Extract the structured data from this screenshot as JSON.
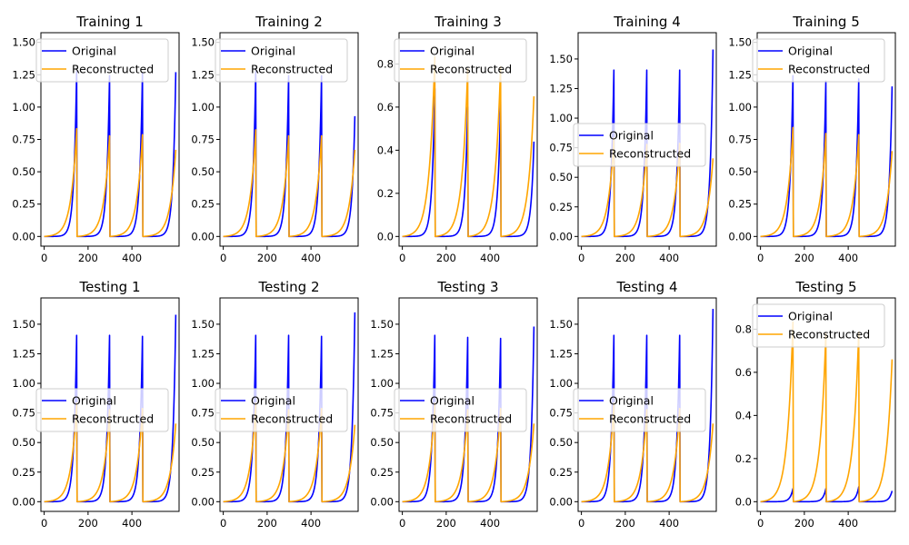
{
  "colors": {
    "original": "#0000ff",
    "reconstructed": "#ffa500"
  },
  "chart_data": [
    {
      "type": "line",
      "title": "Training 1",
      "xlim": [
        -15,
        615
      ],
      "ylim": [
        -0.075,
        1.575
      ],
      "xticks": [
        0,
        200,
        400
      ],
      "xtick_labels": [
        "0",
        "200",
        "400"
      ],
      "yticks": [
        0,
        0.25,
        0.5,
        0.75,
        1.0,
        1.25,
        1.5
      ],
      "ytick_labels": [
        "0.00",
        "0.25",
        "0.50",
        "0.75",
        "1.00",
        "1.25",
        "1.50"
      ],
      "legend": "upper-left",
      "series": [
        {
          "name": "Original",
          "color": "#0000ff",
          "peaks": [
            1.49,
            1.45,
            1.47
          ],
          "end": 1.27
        },
        {
          "name": "Reconstructed",
          "color": "#ffa500",
          "peaks": [
            0.9,
            0.84,
            0.85
          ],
          "end": 0.67
        }
      ]
    },
    {
      "type": "line",
      "title": "Training 2",
      "xlim": [
        -15,
        615
      ],
      "ylim": [
        -0.075,
        1.575
      ],
      "xticks": [
        0,
        200,
        400
      ],
      "xtick_labels": [
        "0",
        "200",
        "400"
      ],
      "yticks": [
        0,
        0.25,
        0.5,
        0.75,
        1.0,
        1.25,
        1.5
      ],
      "ytick_labels": [
        "0.00",
        "0.25",
        "0.50",
        "0.75",
        "1.00",
        "1.25",
        "1.50"
      ],
      "legend": "upper-left",
      "series": [
        {
          "name": "Original",
          "color": "#0000ff",
          "peaks": [
            1.49,
            1.45,
            1.45
          ],
          "end": 0.93
        },
        {
          "name": "Reconstructed",
          "color": "#ffa500",
          "peaks": [
            0.89,
            0.84,
            0.84
          ],
          "end": 0.67
        }
      ]
    },
    {
      "type": "line",
      "title": "Training 3",
      "xlim": [
        -15,
        615
      ],
      "ylim": [
        -0.045,
        0.945
      ],
      "xticks": [
        0,
        200,
        400
      ],
      "xtick_labels": [
        "0",
        "200",
        "400"
      ],
      "yticks": [
        0,
        0.2,
        0.4,
        0.6,
        0.8
      ],
      "ytick_labels": [
        "0.0",
        "0.2",
        "0.4",
        "0.6",
        "0.8"
      ],
      "legend": "upper-center",
      "series": [
        {
          "name": "Original",
          "color": "#0000ff",
          "peaks": [
            0.8,
            0.7,
            0.73
          ],
          "end": 0.44
        },
        {
          "name": "Reconstructed",
          "color": "#ffa500",
          "peaks": [
            0.9,
            0.84,
            0.85
          ],
          "end": 0.65
        }
      ]
    },
    {
      "type": "line",
      "title": "Training 4",
      "xlim": [
        -15,
        615
      ],
      "ylim": [
        -0.082,
        1.722
      ],
      "xticks": [
        0,
        200,
        400
      ],
      "xtick_labels": [
        "0",
        "200",
        "400"
      ],
      "yticks": [
        0,
        0.25,
        0.5,
        0.75,
        1.0,
        1.25,
        1.5
      ],
      "ytick_labels": [
        "0.00",
        "0.25",
        "0.50",
        "0.75",
        "1.00",
        "1.25",
        "1.50"
      ],
      "legend": "center-left",
      "series": [
        {
          "name": "Original",
          "color": "#0000ff",
          "peaks": [
            1.64,
            1.64,
            1.64
          ],
          "end": 1.58
        },
        {
          "name": "Reconstructed",
          "color": "#ffa500",
          "peaks": [
            0.9,
            0.84,
            0.85
          ],
          "end": 0.66
        }
      ]
    },
    {
      "type": "line",
      "title": "Training 5",
      "xlim": [
        -15,
        615
      ],
      "ylim": [
        -0.075,
        1.575
      ],
      "xticks": [
        0,
        200,
        400
      ],
      "xtick_labels": [
        "0",
        "200",
        "400"
      ],
      "yticks": [
        0,
        0.25,
        0.5,
        0.75,
        1.0,
        1.25,
        1.5
      ],
      "ytick_labels": [
        "0.00",
        "0.25",
        "0.50",
        "0.75",
        "1.00",
        "1.25",
        "1.50"
      ],
      "legend": "upper-left",
      "series": [
        {
          "name": "Original",
          "color": "#0000ff",
          "peaks": [
            1.45,
            1.4,
            1.42
          ],
          "end": 1.16
        },
        {
          "name": "Reconstructed",
          "color": "#ffa500",
          "peaks": [
            0.91,
            0.86,
            0.85
          ],
          "end": 0.66
        }
      ]
    },
    {
      "type": "line",
      "title": "Testing 1",
      "xlim": [
        -15,
        615
      ],
      "ylim": [
        -0.082,
        1.722
      ],
      "xticks": [
        0,
        200,
        400
      ],
      "xtick_labels": [
        "0",
        "200",
        "400"
      ],
      "yticks": [
        0,
        0.25,
        0.5,
        0.75,
        1.0,
        1.25,
        1.5
      ],
      "ytick_labels": [
        "0.00",
        "0.25",
        "0.50",
        "0.75",
        "1.00",
        "1.25",
        "1.50"
      ],
      "legend": "center-left",
      "series": [
        {
          "name": "Original",
          "color": "#0000ff",
          "peaks": [
            1.64,
            1.64,
            1.63
          ],
          "end": 1.58
        },
        {
          "name": "Reconstructed",
          "color": "#ffa500",
          "peaks": [
            0.9,
            0.84,
            0.85
          ],
          "end": 0.66
        }
      ]
    },
    {
      "type": "line",
      "title": "Testing 2",
      "xlim": [
        -15,
        615
      ],
      "ylim": [
        -0.082,
        1.722
      ],
      "xticks": [
        0,
        200,
        400
      ],
      "xtick_labels": [
        "0",
        "200",
        "400"
      ],
      "yticks": [
        0,
        0.25,
        0.5,
        0.75,
        1.0,
        1.25,
        1.5
      ],
      "ytick_labels": [
        "0.00",
        "0.25",
        "0.50",
        "0.75",
        "1.00",
        "1.25",
        "1.50"
      ],
      "legend": "center-left",
      "series": [
        {
          "name": "Original",
          "color": "#0000ff",
          "peaks": [
            1.64,
            1.64,
            1.63
          ],
          "end": 1.6
        },
        {
          "name": "Reconstructed",
          "color": "#ffa500",
          "peaks": [
            0.9,
            0.84,
            0.85
          ],
          "end": 0.65
        }
      ]
    },
    {
      "type": "line",
      "title": "Testing 3",
      "xlim": [
        -15,
        615
      ],
      "ylim": [
        -0.082,
        1.722
      ],
      "xticks": [
        0,
        200,
        400
      ],
      "xtick_labels": [
        "0",
        "200",
        "400"
      ],
      "yticks": [
        0,
        0.25,
        0.5,
        0.75,
        1.0,
        1.25,
        1.5
      ],
      "ytick_labels": [
        "0.00",
        "0.25",
        "0.50",
        "0.75",
        "1.00",
        "1.25",
        "1.50"
      ],
      "legend": "center-left",
      "series": [
        {
          "name": "Original",
          "color": "#0000ff",
          "peaks": [
            1.64,
            1.62,
            1.61
          ],
          "end": 1.48
        },
        {
          "name": "Reconstructed",
          "color": "#ffa500",
          "peaks": [
            0.9,
            0.84,
            0.85
          ],
          "end": 0.66
        }
      ]
    },
    {
      "type": "line",
      "title": "Testing 4",
      "xlim": [
        -15,
        615
      ],
      "ylim": [
        -0.082,
        1.722
      ],
      "xticks": [
        0,
        200,
        400
      ],
      "xtick_labels": [
        "0",
        "200",
        "400"
      ],
      "yticks": [
        0,
        0.25,
        0.5,
        0.75,
        1.0,
        1.25,
        1.5
      ],
      "ytick_labels": [
        "0.00",
        "0.25",
        "0.50",
        "0.75",
        "1.00",
        "1.25",
        "1.50"
      ],
      "legend": "center-left",
      "series": [
        {
          "name": "Original",
          "color": "#0000ff",
          "peaks": [
            1.64,
            1.64,
            1.64
          ],
          "end": 1.63
        },
        {
          "name": "Reconstructed",
          "color": "#ffa500",
          "peaks": [
            0.9,
            0.84,
            0.85
          ],
          "end": 0.66
        }
      ]
    },
    {
      "type": "line",
      "title": "Testing 5",
      "xlim": [
        -15,
        615
      ],
      "ylim": [
        -0.045,
        0.945
      ],
      "xticks": [
        0,
        200,
        400
      ],
      "xtick_labels": [
        "0",
        "200",
        "400"
      ],
      "yticks": [
        0,
        0.2,
        0.4,
        0.6,
        0.8
      ],
      "ytick_labels": [
        "0.0",
        "0.2",
        "0.4",
        "0.6",
        "0.8"
      ],
      "legend": "upper-left",
      "series": [
        {
          "name": "Original",
          "color": "#0000ff",
          "peaks": [
            0.07,
            0.07,
            0.08
          ],
          "end": 0.05
        },
        {
          "name": "Reconstructed",
          "color": "#ffa500",
          "peaks": [
            0.9,
            0.84,
            0.85
          ],
          "end": 0.66
        }
      ]
    }
  ]
}
